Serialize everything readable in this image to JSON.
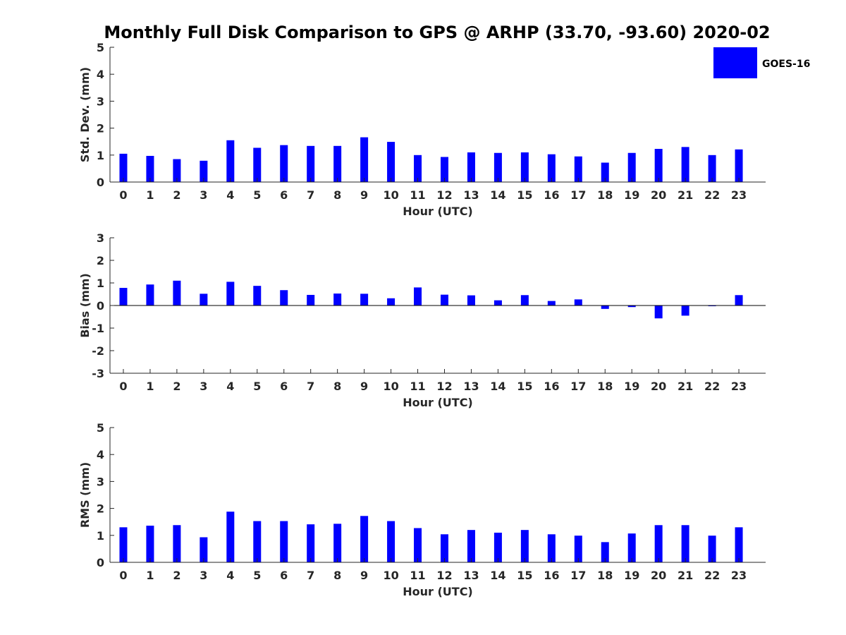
{
  "title": "Monthly Full Disk Comparison to GPS @ ARHP (33.70, -93.60) 2020-02",
  "legend": {
    "label": "GOES-16",
    "placement": "top-right"
  },
  "colors": {
    "bar": "#0000ff",
    "axis": "#262626"
  },
  "chart_data": [
    {
      "type": "bar",
      "ylabel": "Std. Dev. (mm)",
      "xlabel": "Hour (UTC)",
      "ylim": [
        0,
        5
      ],
      "yticks": [
        0,
        1,
        2,
        3,
        4,
        5
      ],
      "categories": [
        "0",
        "1",
        "2",
        "3",
        "4",
        "5",
        "6",
        "7",
        "8",
        "9",
        "10",
        "11",
        "12",
        "13",
        "14",
        "15",
        "16",
        "17",
        "18",
        "19",
        "20",
        "21",
        "22",
        "23"
      ],
      "series": [
        {
          "name": "GOES-16",
          "values": [
            1.05,
            0.97,
            0.85,
            0.79,
            1.55,
            1.27,
            1.37,
            1.34,
            1.34,
            1.66,
            1.49,
            1.0,
            0.93,
            1.1,
            1.08,
            1.1,
            1.03,
            0.95,
            0.72,
            1.08,
            1.23,
            1.3,
            1.0,
            1.21
          ]
        }
      ]
    },
    {
      "type": "bar",
      "ylabel": "Bias (mm)",
      "xlabel": "Hour (UTC)",
      "ylim": [
        -3,
        3
      ],
      "yticks": [
        -3,
        -2,
        -1,
        0,
        1,
        2,
        3
      ],
      "categories": [
        "0",
        "1",
        "2",
        "3",
        "4",
        "5",
        "6",
        "7",
        "8",
        "9",
        "10",
        "11",
        "12",
        "13",
        "14",
        "15",
        "16",
        "17",
        "18",
        "19",
        "20",
        "21",
        "22",
        "23"
      ],
      "series": [
        {
          "name": "GOES-16",
          "values": [
            0.78,
            0.93,
            1.1,
            0.52,
            1.05,
            0.87,
            0.68,
            0.47,
            0.53,
            0.52,
            0.32,
            0.8,
            0.48,
            0.45,
            0.23,
            0.46,
            0.2,
            0.27,
            -0.15,
            -0.07,
            -0.57,
            -0.45,
            -0.03,
            0.46
          ]
        }
      ]
    },
    {
      "type": "bar",
      "ylabel": "RMS (mm)",
      "xlabel": "Hour (UTC)",
      "ylim": [
        0,
        5
      ],
      "yticks": [
        0,
        1,
        2,
        3,
        4,
        5
      ],
      "categories": [
        "0",
        "1",
        "2",
        "3",
        "4",
        "5",
        "6",
        "7",
        "8",
        "9",
        "10",
        "11",
        "12",
        "13",
        "14",
        "15",
        "16",
        "17",
        "18",
        "19",
        "20",
        "21",
        "22",
        "23"
      ],
      "series": [
        {
          "name": "GOES-16",
          "values": [
            1.3,
            1.36,
            1.38,
            0.93,
            1.88,
            1.53,
            1.53,
            1.41,
            1.43,
            1.72,
            1.53,
            1.27,
            1.04,
            1.2,
            1.1,
            1.2,
            1.04,
            0.99,
            0.75,
            1.07,
            1.38,
            1.38,
            0.99,
            1.3
          ]
        }
      ]
    }
  ]
}
